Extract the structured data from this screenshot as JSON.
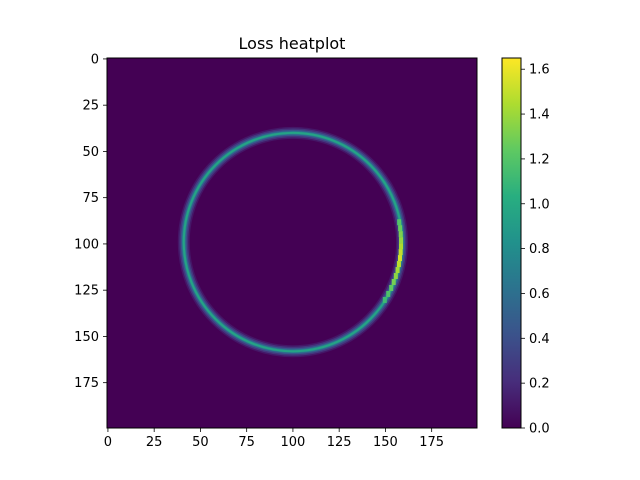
{
  "chart_data": {
    "type": "heatmap",
    "title": "Loss heatplot",
    "xlabel": "",
    "ylabel": "",
    "grid": false,
    "x_range": [
      0,
      199
    ],
    "y_range": [
      0,
      199
    ],
    "y_axis_inverted": true,
    "x_ticks": [
      0,
      25,
      50,
      75,
      100,
      125,
      150,
      175
    ],
    "y_ticks": [
      0,
      25,
      50,
      75,
      100,
      125,
      150,
      175
    ],
    "colormap": "viridis",
    "colorbar": {
      "min": 0.0,
      "max": 1.65,
      "ticks": [
        0.0,
        0.2,
        0.4,
        0.6,
        0.8,
        1.0,
        1.2,
        1.4,
        1.6
      ],
      "tick_labels": [
        "0.0",
        "0.2",
        "0.4",
        "0.6",
        "0.8",
        "1.0",
        "1.2",
        "1.4",
        "1.6"
      ]
    },
    "background_value": 0.0,
    "ring": {
      "center_x": 100,
      "center_y": 99,
      "radius": 59,
      "peak_value": 0.95,
      "hotspot": {
        "from_y": 88,
        "to_y": 130,
        "side": "right",
        "peak_value": 1.55
      }
    },
    "colors": {
      "low": "#440154",
      "mid": "#21918c",
      "high": "#fde725"
    }
  }
}
